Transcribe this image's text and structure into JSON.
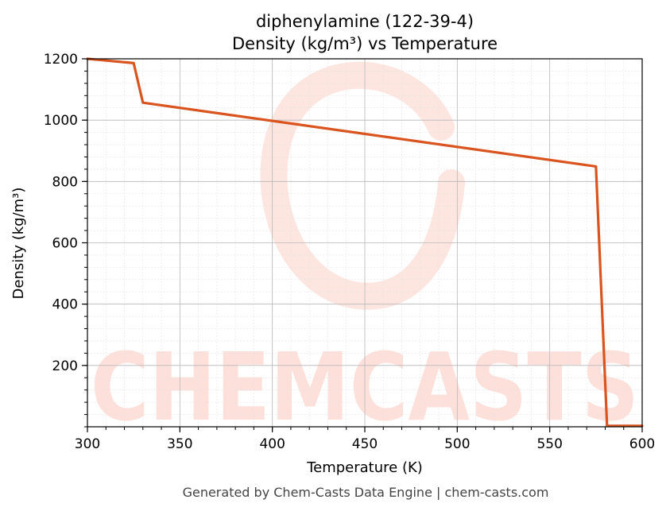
{
  "chart_data": {
    "type": "line",
    "title": "diphenylamine (122-39-4)",
    "subtitle": "Density (kg/m³) vs Temperature",
    "xlabel": "Temperature (K)",
    "ylabel": "Density (kg/m³)",
    "xlim": [
      300,
      600
    ],
    "ylim": [
      0,
      1200
    ],
    "xticks": [
      300,
      350,
      400,
      450,
      500,
      550,
      600
    ],
    "yticks": [
      200,
      400,
      600,
      800,
      1000,
      1200
    ],
    "grid": true,
    "series": [
      {
        "color": "#d9541e",
        "x": [
          300,
          325,
          330,
          575,
          581,
          600
        ],
        "y": [
          1200,
          1186,
          1057,
          849,
          3,
          3
        ]
      }
    ]
  },
  "footer": "Generated by Chem-Casts Data Engine | chem-casts.com",
  "watermark": {
    "text": "CHEMCASTS",
    "color": "#fde0da"
  }
}
